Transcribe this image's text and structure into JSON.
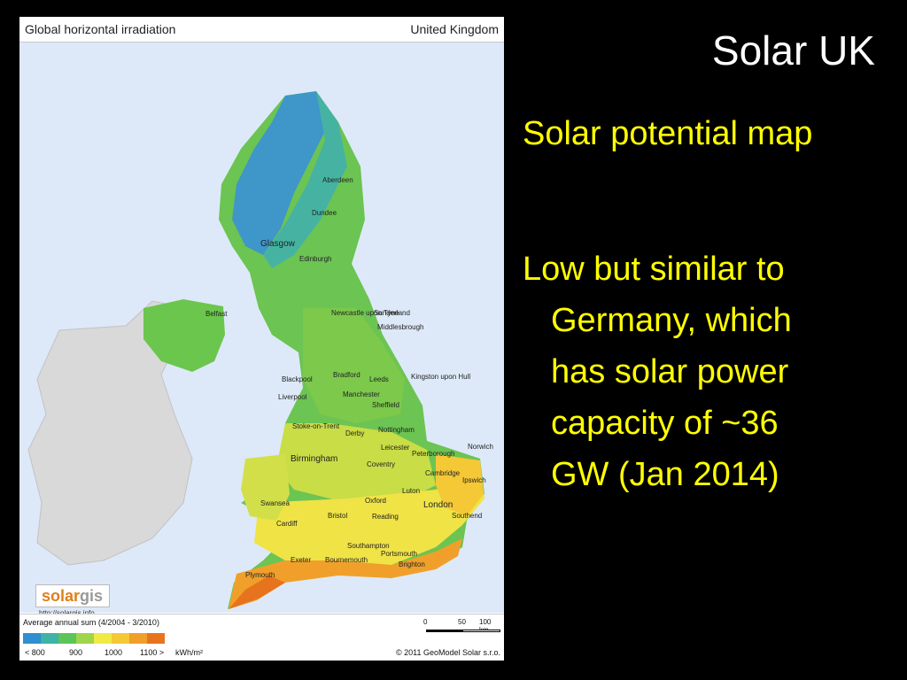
{
  "slide": {
    "title": "Solar UK",
    "subheading": "Solar potential map",
    "body_lines": [
      "Low but similar to",
      "Germany, which",
      "has solar power",
      "capacity of ~36",
      "GW (Jan 2014)"
    ]
  },
  "map": {
    "title": "Global horizontal irradiation",
    "region": "United Kingdom",
    "cities": [
      "Aberdeen",
      "Dundee",
      "Glasgow",
      "Edinburgh",
      "Belfast",
      "Newcastle upon Tyne",
      "Sunderland",
      "Middlesbrough",
      "Bradford",
      "Leeds",
      "Blackpool",
      "Manchester",
      "Liverpool",
      "Sheffield",
      "Kingston upon Hull",
      "Stoke-on-Trent",
      "Derby",
      "Nottingham",
      "Leicester",
      "Birmingham",
      "Coventry",
      "Peterborough",
      "Norwich",
      "Cambridge",
      "Ipswich",
      "Luton",
      "Oxford",
      "London",
      "Swansea",
      "Cardiff",
      "Bristol",
      "Reading",
      "Southend",
      "Southampton",
      "Portsmouth",
      "Exeter",
      "Bournemouth",
      "Brighton",
      "Plymouth"
    ],
    "logo_url": "http://solargis.info",
    "logo_text": "solargis",
    "logo_colors": {
      "solar": "#e07e1a",
      "gis": "#9a9a9a"
    }
  },
  "legend": {
    "title": "Average annual sum (4/2004 - 3/2010)",
    "colors": [
      "#2f8fd0",
      "#3fb3a5",
      "#5cc45a",
      "#9fd54a",
      "#f1ea44",
      "#f5c835",
      "#f0a02a",
      "#e8731f"
    ],
    "labels": [
      "< 800",
      "900",
      "1000",
      "1100 >",
      "kWh/m²"
    ],
    "scale_labels": [
      "0",
      "50",
      "100 km"
    ],
    "copyright": "© 2011 GeoModel Solar s.r.o."
  }
}
